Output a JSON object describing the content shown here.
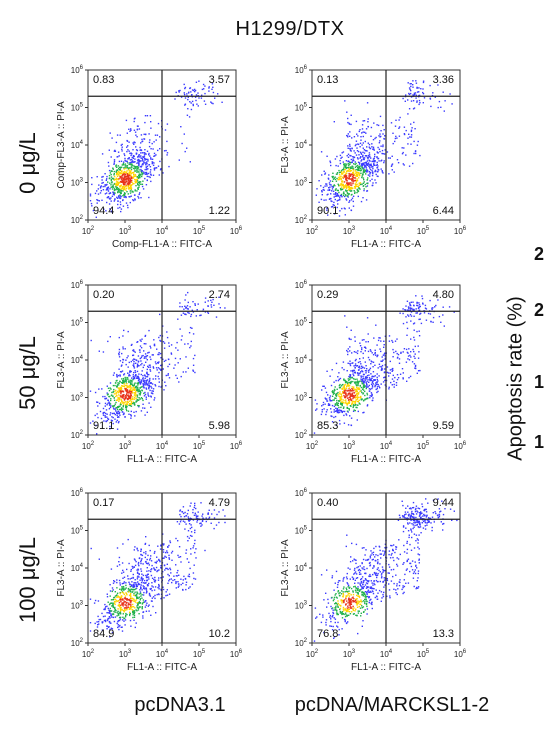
{
  "title": "H1299/DTX",
  "row_labels": [
    "0 μg/L",
    "50 μg/L",
    "100 μg/L"
  ],
  "col_labels": [
    "pcDNA3.1",
    "pcDNA/MARCKSL1-2"
  ],
  "side_panel": {
    "ylabel": "Apoptosis rate (%)",
    "tick_fragments": [
      "2",
      "2",
      "1",
      "1"
    ]
  },
  "chart_data": [
    {
      "type": "scatter",
      "panel": "0 μg/L / pcDNA3.1",
      "xlabel": "Comp-FL1-A :: FITC-A",
      "ylabel": "Comp-FL3-A :: PI-A",
      "log_scale": true,
      "xlim": [
        2,
        6
      ],
      "ylim": [
        2,
        6
      ],
      "gate": [
        4,
        5.3
      ],
      "quadrants": {
        "upper_left": "0.83",
        "upper_right": "3.57",
        "lower_left": "94.4",
        "lower_right": "1.22"
      }
    },
    {
      "type": "scatter",
      "panel": "0 μg/L / pcDNA/MARCKSL1-2",
      "xlabel": "FL1-A :: FITC-A",
      "ylabel": "FL3-A :: PI-A",
      "log_scale": true,
      "xlim": [
        2,
        6
      ],
      "ylim": [
        2,
        6
      ],
      "gate": [
        4,
        5.3
      ],
      "quadrants": {
        "upper_left": "0.13",
        "upper_right": "3.36",
        "lower_left": "90.1",
        "lower_right": "6.44"
      }
    },
    {
      "type": "scatter",
      "panel": "50 μg/L / pcDNA3.1",
      "xlabel": "FL1-A :: FITC-A",
      "ylabel": "FL3-A :: PI-A",
      "log_scale": true,
      "xlim": [
        2,
        6
      ],
      "ylim": [
        2,
        6
      ],
      "gate": [
        4,
        5.3
      ],
      "quadrants": {
        "upper_left": "0.20",
        "upper_right": "2.74",
        "lower_left": "91.1",
        "lower_right": "5.98"
      }
    },
    {
      "type": "scatter",
      "panel": "50 μg/L / pcDNA/MARCKSL1-2",
      "xlabel": "FL1-A :: FITC-A",
      "ylabel": "FL3-A :: PI-A",
      "log_scale": true,
      "xlim": [
        2,
        6
      ],
      "ylim": [
        2,
        6
      ],
      "gate": [
        4,
        5.3
      ],
      "quadrants": {
        "upper_left": "0.29",
        "upper_right": "4.80",
        "lower_left": "85.3",
        "lower_right": "9.59"
      }
    },
    {
      "type": "scatter",
      "panel": "100 μg/L / pcDNA3.1",
      "xlabel": "FL1-A :: FITC-A",
      "ylabel": "FL3-A :: PI-A",
      "log_scale": true,
      "xlim": [
        2,
        6
      ],
      "ylim": [
        2,
        6
      ],
      "gate": [
        4,
        5.3
      ],
      "quadrants": {
        "upper_left": "0.17",
        "upper_right": "4.79",
        "lower_left": "84.9",
        "lower_right": "10.2"
      }
    },
    {
      "type": "scatter",
      "panel": "100 μg/L / pcDNA/MARCKSL1-2",
      "xlabel": "FL1-A :: FITC-A",
      "ylabel": "FL3-A :: PI-A",
      "log_scale": true,
      "xlim": [
        2,
        6
      ],
      "ylim": [
        2,
        6
      ],
      "gate": [
        4,
        5.3
      ],
      "quadrants": {
        "upper_left": "0.40",
        "upper_right": "9.44",
        "lower_left": "76.8",
        "lower_right": "13.3"
      }
    }
  ],
  "colors": {
    "density_low": "#3b3bff",
    "density_mid": "#22b14c",
    "density_high": "#ffd400",
    "density_peak": "#e8321a",
    "gate_line": "#222222"
  }
}
